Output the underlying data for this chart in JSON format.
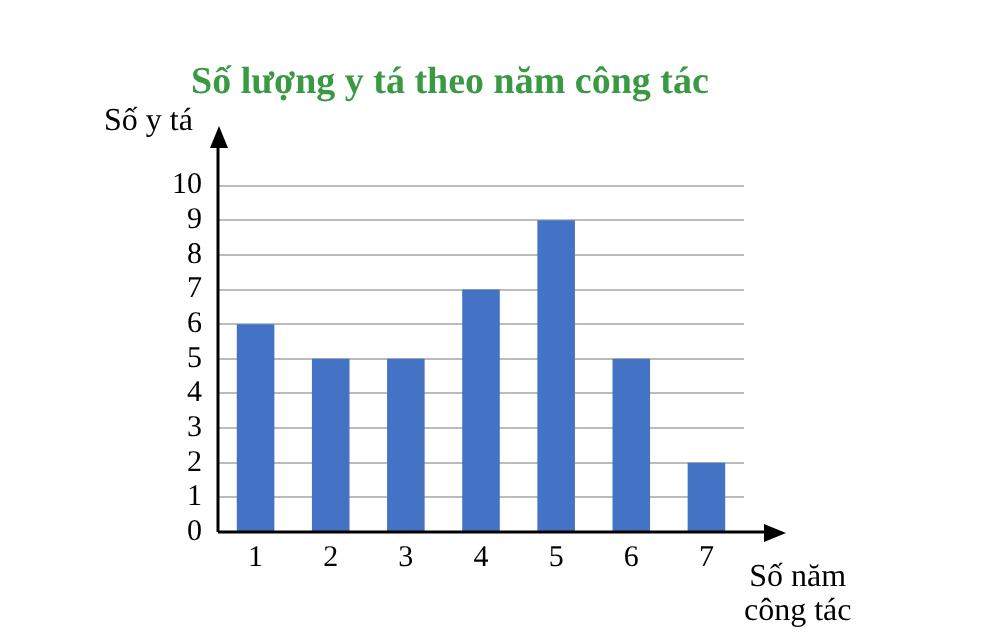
{
  "chart_data": {
    "type": "bar",
    "title": "Số lượng y tá theo năm công tác",
    "xlabel": "Số năm\ncông tác",
    "ylabel": "Số y tá",
    "categories": [
      "1",
      "2",
      "3",
      "4",
      "5",
      "6",
      "7"
    ],
    "values": [
      6,
      5,
      5,
      7,
      9,
      5,
      2
    ],
    "color": "#4472c4",
    "ylim": [
      0,
      10
    ],
    "yticks": [
      0,
      1,
      2,
      3,
      4,
      5,
      6,
      7,
      8,
      9,
      10
    ],
    "grid": "y"
  }
}
